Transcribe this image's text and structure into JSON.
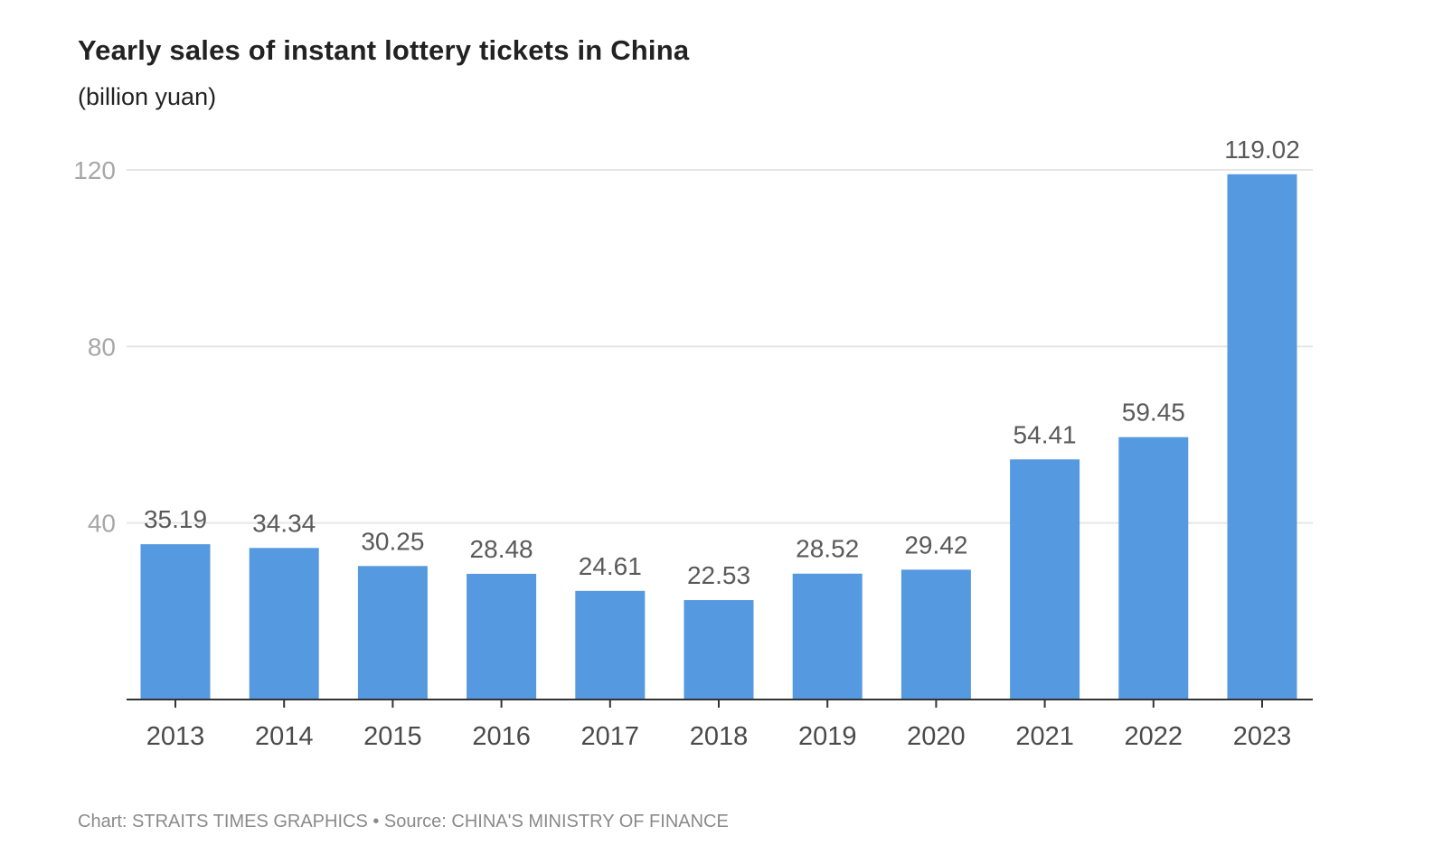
{
  "chart_data": {
    "type": "bar",
    "title": "Yearly sales of instant lottery tickets in China",
    "subtitle": "(billion yuan)",
    "xlabel": "",
    "ylabel": "",
    "categories": [
      "2013",
      "2014",
      "2015",
      "2016",
      "2017",
      "2018",
      "2019",
      "2020",
      "2021",
      "2022",
      "2023"
    ],
    "values": [
      35.19,
      34.34,
      30.25,
      28.48,
      24.61,
      22.53,
      28.52,
      29.42,
      54.41,
      59.45,
      119.02
    ],
    "value_labels": [
      "35.19",
      "34.34",
      "30.25",
      "28.48",
      "24.61",
      "22.53",
      "28.52",
      "29.42",
      "54.41",
      "59.45",
      "119.02"
    ],
    "ylim": [
      0,
      120
    ],
    "yticks": [
      40,
      80,
      120
    ],
    "ytick_labels": [
      "40",
      "80",
      "120"
    ],
    "grid": true,
    "bar_color": "#5599e0",
    "footer": "Chart: STRAITS TIMES GRAPHICS • Source: CHINA'S MINISTRY OF FINANCE"
  }
}
